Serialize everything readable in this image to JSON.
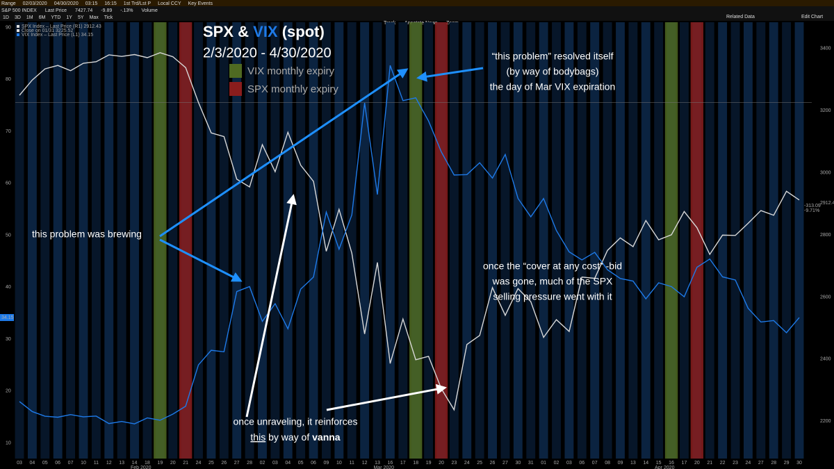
{
  "header": {
    "row1": [
      "Range",
      "02/03/2020",
      "04/30/2020",
      "03:15",
      "16:15",
      "1st Trd/Lst P",
      "Local CCY",
      "Key Events"
    ],
    "row2": [
      "S&P 500 INDEX",
      "Last Price",
      "7427.74",
      "-9.89",
      "-.13%",
      "Volume"
    ],
    "row3": [
      "1D",
      "3D",
      "1M",
      "6M",
      "YTD",
      "1Y",
      "5Y",
      "Max",
      "Tick"
    ],
    "toolbar": [
      "Track",
      "Annotate",
      "News",
      "Zoom"
    ],
    "right": [
      "Related Data",
      "Edit Chart"
    ]
  },
  "chart_data": {
    "type": "line",
    "title_parts": [
      "SPX & ",
      "VIX",
      " (spot)"
    ],
    "subtitle": "2/3/2020 - 4/30/2020",
    "legend": [
      "SPX Index – Last Price (R1) 2912.43",
      "Close on 01/31 3225.52",
      "VIX Index – Last Price (L1) 34.15"
    ],
    "categories": [
      "03",
      "04",
      "05",
      "06",
      "07",
      "10",
      "11",
      "12",
      "13",
      "14",
      "18",
      "19",
      "20",
      "21",
      "24",
      "25",
      "26",
      "27",
      "28",
      "02",
      "03",
      "04",
      "05",
      "06",
      "09",
      "10",
      "11",
      "12",
      "13",
      "16",
      "17",
      "18",
      "19",
      "20",
      "23",
      "24",
      "25",
      "26",
      "27",
      "30",
      "31",
      "01",
      "02",
      "03",
      "06",
      "07",
      "08",
      "09",
      "13",
      "14",
      "15",
      "16",
      "17",
      "20",
      "21",
      "22",
      "23",
      "24",
      "27",
      "28",
      "29",
      "30"
    ],
    "months": [
      {
        "label": "Feb 2020",
        "start": 0
      },
      {
        "label": "Mar 2020",
        "start": 19
      },
      {
        "label": "Apr 2020",
        "start": 41
      }
    ],
    "series": [
      {
        "name": "SPX",
        "axis": "y2",
        "color": "#d8d8d8",
        "values": [
          3249,
          3298,
          3334,
          3345,
          3328,
          3352,
          3357,
          3379,
          3374,
          3380,
          3370,
          3386,
          3373,
          3338,
          3226,
          3128,
          3116,
          2979,
          2954,
          3090,
          3003,
          3130,
          3024,
          2972,
          2747,
          2882,
          2741,
          2481,
          2711,
          2386,
          2529,
          2398,
          2409,
          2305,
          2237,
          2447,
          2476,
          2630,
          2541,
          2627,
          2585,
          2470,
          2527,
          2489,
          2664,
          2660,
          2750,
          2790,
          2762,
          2846,
          2784,
          2800,
          2875,
          2823,
          2737,
          2799,
          2798,
          2837,
          2878,
          2863,
          2940,
          2912
        ]
      },
      {
        "name": "VIX",
        "axis": "y",
        "color": "#1e7ae8",
        "values": [
          17.97,
          16.05,
          15.15,
          14.96,
          15.47,
          15.04,
          15.18,
          13.74,
          14.15,
          13.68,
          14.83,
          14.38,
          15.56,
          17.08,
          25.03,
          27.85,
          27.56,
          39.16,
          40.11,
          33.42,
          36.82,
          31.99,
          39.62,
          41.94,
          54.46,
          47.3,
          53.9,
          75.47,
          57.83,
          82.69,
          75.91,
          76.45,
          72,
          66.04,
          61.59,
          61.67,
          63.95,
          61,
          65.54,
          57.08,
          53.54,
          57.06,
          50.91,
          46.8,
          45.24,
          46.7,
          43.35,
          41.67,
          41.17,
          37.76,
          40.84,
          40.11,
          38.15,
          43.83,
          45.41,
          41.98,
          41.38,
          35.93,
          33.29,
          33.57,
          31.23,
          34.15
        ]
      }
    ],
    "bands": [
      {
        "name": "VIX monthly expiry",
        "color": "#4f6a22",
        "days": [
          11,
          31,
          51
        ]
      },
      {
        "name": "SPX monthly expiry",
        "color": "#8a1d1d",
        "days": [
          13,
          33,
          53
        ]
      }
    ],
    "ylim": [
      7,
      91
    ],
    "yticks": [
      10,
      20,
      30,
      40,
      50,
      60,
      70,
      80,
      90
    ],
    "y2lim": [
      2080,
      3484
    ],
    "y2ticks": [
      2200,
      2400,
      2600,
      2800,
      3000,
      3200,
      3400
    ],
    "last_labels": {
      "left": "34.15",
      "right": [
        "2912.43",
        "-313.09",
        "-9.71%"
      ]
    },
    "annotations": [
      [
        "this problem was brewing"
      ],
      [
        "“this problem” resolved itself",
        "(by way of bodybags)",
        "the day of Mar VIX expiration"
      ],
      [
        "once the “cover at any cost” -bid",
        "was gone, much of the SPX",
        "selling pressure went with it"
      ],
      [
        "once unraveling, it reinforces"
      ]
    ],
    "vanna_parts": [
      "this",
      " by way of ",
      "vanna"
    ]
  }
}
